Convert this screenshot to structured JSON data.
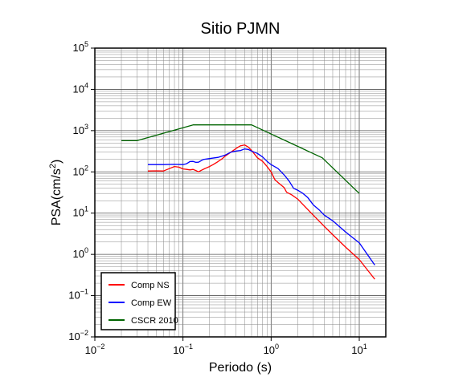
{
  "chart_data": {
    "type": "line",
    "title": "Sitio PJMN",
    "xlabel": "Periodo (s)",
    "ylabel": "PSA(cm/s²)",
    "ylabel_base": "PSA(cm/s",
    "ylabel_exp": "2",
    "ylabel_tail": ")",
    "x_scale": "log",
    "y_scale": "log",
    "xlim": [
      0.01,
      20
    ],
    "ylim": [
      0.01,
      100000
    ],
    "x_ticks": [
      {
        "value": 0.01,
        "base": "10",
        "exp": "−2"
      },
      {
        "value": 0.1,
        "base": "10",
        "exp": "−1"
      },
      {
        "value": 1,
        "base": "10",
        "exp": "0"
      },
      {
        "value": 10,
        "base": "10",
        "exp": "1"
      }
    ],
    "y_ticks": [
      {
        "value": 0.01,
        "base": "10",
        "exp": "−2"
      },
      {
        "value": 0.1,
        "base": "10",
        "exp": "−1"
      },
      {
        "value": 1,
        "base": "10",
        "exp": "0"
      },
      {
        "value": 10,
        "base": "10",
        "exp": "1"
      },
      {
        "value": 100,
        "base": "10",
        "exp": "2"
      },
      {
        "value": 1000,
        "base": "10",
        "exp": "3"
      },
      {
        "value": 10000,
        "base": "10",
        "exp": "4"
      },
      {
        "value": 100000,
        "base": "10",
        "exp": "5"
      }
    ],
    "grid": true,
    "legend_position": "bottom-left",
    "series": [
      {
        "name": "Comp NS",
        "color": "#ff0000",
        "points": [
          [
            0.04,
            105
          ],
          [
            0.05,
            106
          ],
          [
            0.06,
            105
          ],
          [
            0.07,
            120
          ],
          [
            0.08,
            135
          ],
          [
            0.09,
            130
          ],
          [
            0.1,
            118
          ],
          [
            0.11,
            115
          ],
          [
            0.12,
            112
          ],
          [
            0.13,
            115
          ],
          [
            0.14,
            108
          ],
          [
            0.15,
            100
          ],
          [
            0.16,
            108
          ],
          [
            0.18,
            122
          ],
          [
            0.2,
            135
          ],
          [
            0.22,
            150
          ],
          [
            0.25,
            178
          ],
          [
            0.28,
            210
          ],
          [
            0.3,
            240
          ],
          [
            0.35,
            300
          ],
          [
            0.4,
            370
          ],
          [
            0.45,
            430
          ],
          [
            0.5,
            450
          ],
          [
            0.55,
            400
          ],
          [
            0.6,
            330
          ],
          [
            0.7,
            220
          ],
          [
            0.8,
            180
          ],
          [
            0.9,
            135
          ],
          [
            1.0,
            100
          ],
          [
            1.1,
            65
          ],
          [
            1.2,
            55
          ],
          [
            1.4,
            42
          ],
          [
            1.5,
            32
          ],
          [
            1.7,
            28
          ],
          [
            2.0,
            22
          ],
          [
            3.0,
            9
          ],
          [
            4.0,
            4.8
          ],
          [
            5.0,
            3.0
          ],
          [
            7.0,
            1.5
          ],
          [
            10.0,
            0.75
          ],
          [
            15.0,
            0.25
          ]
        ]
      },
      {
        "name": "Comp EW",
        "color": "#0000ff",
        "points": [
          [
            0.04,
            150
          ],
          [
            0.05,
            150
          ],
          [
            0.06,
            150
          ],
          [
            0.08,
            152
          ],
          [
            0.1,
            150
          ],
          [
            0.11,
            158
          ],
          [
            0.12,
            178
          ],
          [
            0.13,
            180
          ],
          [
            0.14,
            170
          ],
          [
            0.15,
            172
          ],
          [
            0.17,
            200
          ],
          [
            0.2,
            210
          ],
          [
            0.25,
            225
          ],
          [
            0.3,
            255
          ],
          [
            0.35,
            300
          ],
          [
            0.4,
            320
          ],
          [
            0.45,
            330
          ],
          [
            0.5,
            360
          ],
          [
            0.55,
            350
          ],
          [
            0.6,
            320
          ],
          [
            0.7,
            280
          ],
          [
            0.8,
            230
          ],
          [
            0.9,
            180
          ],
          [
            1.0,
            150
          ],
          [
            1.2,
            120
          ],
          [
            1.4,
            85
          ],
          [
            1.6,
            60
          ],
          [
            1.8,
            40
          ],
          [
            2.0,
            36
          ],
          [
            2.3,
            30
          ],
          [
            2.6,
            24
          ],
          [
            3.0,
            16
          ],
          [
            3.5,
            12
          ],
          [
            4.0,
            9
          ],
          [
            5.0,
            6.5
          ],
          [
            7.0,
            3.5
          ],
          [
            10.0,
            1.9
          ],
          [
            15.0,
            0.55
          ]
        ]
      },
      {
        "name": "CSCR 2010",
        "color": "#006400",
        "points": [
          [
            0.02,
            570
          ],
          [
            0.03,
            570
          ],
          [
            0.13,
            1380
          ],
          [
            0.6,
            1380
          ],
          [
            3.8,
            220
          ],
          [
            10.0,
            30
          ]
        ]
      }
    ]
  }
}
